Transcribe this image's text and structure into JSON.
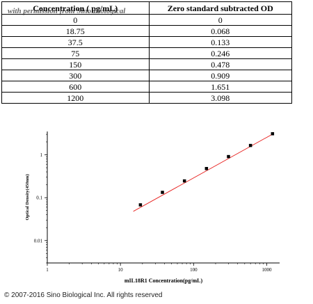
{
  "table": {
    "headers": [
      "Concentration ( pg/mL)",
      "Zero standard subtracted OD"
    ],
    "watermark": "with permission from Sino Biological",
    "rows": [
      [
        "0",
        "0"
      ],
      [
        "18.75",
        "0.068"
      ],
      [
        "37.5",
        "0.133"
      ],
      [
        "75",
        "0.246"
      ],
      [
        "150",
        "0.478"
      ],
      [
        "300",
        "0.909"
      ],
      [
        "600",
        "1.651"
      ],
      [
        "1200",
        "3.098"
      ]
    ]
  },
  "chart_data": {
    "type": "scatter",
    "xlabel": "mIL18R1 Concentration(pg/mL)",
    "ylabel": "Optical Density(450nm)",
    "x_scale": "log",
    "y_scale": "log",
    "xlim": [
      1,
      1500
    ],
    "ylim": [
      0.003,
      3.5
    ],
    "x_ticks": [
      1,
      10,
      100,
      1000
    ],
    "x_tick_labels": [
      "1",
      "10",
      "100",
      "1000"
    ],
    "y_ticks": [
      0.01,
      0.1,
      1
    ],
    "y_tick_labels": [
      "0.01",
      "0.1",
      "1"
    ],
    "grid": false,
    "marker_color": "#000000",
    "fit_color": "#e8201e",
    "series": [
      {
        "x": [
          18.75,
          37.5,
          75,
          150,
          300,
          600,
          1200
        ],
        "y": [
          0.068,
          0.133,
          0.246,
          0.478,
          0.909,
          1.651,
          3.098
        ]
      }
    ],
    "fit_line": {
      "x": [
        15,
        1250
      ],
      "y": [
        0.048,
        3.15
      ]
    }
  },
  "footer": {
    "copyright": "© 2007-2016 Sino Biological Inc. All rights reserved"
  }
}
